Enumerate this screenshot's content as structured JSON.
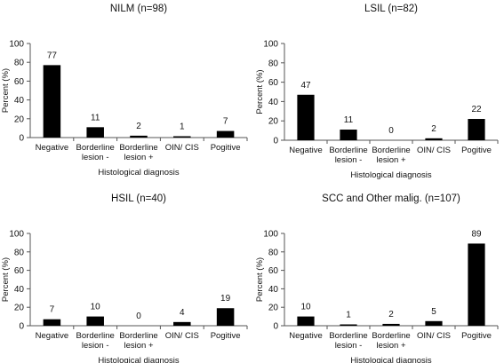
{
  "chart_data": [
    {
      "type": "bar",
      "title": "NILM (n=98)",
      "xlabel": "Histological diagnosis",
      "ylabel": "Percent (%)",
      "ylim": [
        0,
        100
      ],
      "yticks": [
        0,
        20,
        40,
        60,
        80,
        100
      ],
      "grid": false,
      "categories": [
        [
          "Negative"
        ],
        [
          "Borderline",
          "lesion -"
        ],
        [
          "Borderline",
          "lesion +"
        ],
        [
          "OIN/ CIS"
        ],
        [
          "Pogitive"
        ]
      ],
      "values": [
        77,
        11,
        2,
        1,
        7
      ],
      "bar_color": "#000000"
    },
    {
      "type": "bar",
      "title": "LSIL (n=82)",
      "xlabel": "Histological diagnosis",
      "ylabel": "Percent (%)",
      "ylim": [
        0,
        100
      ],
      "yticks": [
        0,
        20,
        40,
        60,
        80,
        100
      ],
      "grid": false,
      "categories": [
        [
          "Negative"
        ],
        [
          "Borderline",
          "lesion -"
        ],
        [
          "Borderline",
          "lesion +"
        ],
        [
          "OIN/ CIS"
        ],
        [
          "Pogitive"
        ]
      ],
      "values": [
        47,
        11,
        0,
        2,
        22
      ],
      "bar_color": "#000000"
    },
    {
      "type": "bar",
      "title": "HSIL (n=40)",
      "xlabel": "Histological diagnosis",
      "ylabel": "Percent (%)",
      "ylim": [
        0,
        100
      ],
      "yticks": [
        0,
        20,
        40,
        60,
        80,
        100
      ],
      "grid": false,
      "categories": [
        [
          "Negative"
        ],
        [
          "Borderline",
          "lesion -"
        ],
        [
          "Borderline",
          "lesion +"
        ],
        [
          "OIN/ CIS"
        ],
        [
          "Pogitive"
        ]
      ],
      "values": [
        7,
        10,
        0,
        4,
        19
      ],
      "bar_color": "#000000"
    },
    {
      "type": "bar",
      "title": "SCC and Other malig. (n=107)",
      "xlabel": "Histological diagnosis",
      "ylabel": "Percent (%)",
      "ylim": [
        0,
        100
      ],
      "yticks": [
        0,
        20,
        40,
        60,
        80,
        100
      ],
      "grid": false,
      "categories": [
        [
          "Negative"
        ],
        [
          "Borderline",
          "lesion -"
        ],
        [
          "Borderline",
          "lesion +"
        ],
        [
          "OIN/ CIS"
        ],
        [
          "Pogitive"
        ]
      ],
      "values": [
        10,
        1,
        2,
        5,
        89
      ],
      "bar_color": "#000000"
    }
  ]
}
